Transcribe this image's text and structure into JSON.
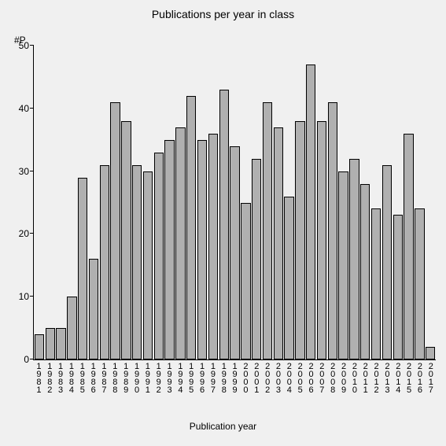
{
  "chart": {
    "type": "bar",
    "title": "Publications per year in class",
    "title_fontsize": 14,
    "yaxis_short_label": "#P",
    "xaxis_label": "Publication year",
    "label_fontsize": 12,
    "background_color": "#f0f0f0",
    "bar_fill_color": "#b0b0b0",
    "bar_border_color": "#000000",
    "axis_color": "#000000",
    "text_color": "#000000",
    "ylim": [
      0,
      50
    ],
    "ytick_step": 10,
    "yticks": [
      0,
      10,
      20,
      30,
      40,
      50
    ],
    "bar_width": 0.9,
    "categories": [
      "1981",
      "1982",
      "1983",
      "1984",
      "1985",
      "1986",
      "1987",
      "1988",
      "1989",
      "1990",
      "1991",
      "1992",
      "1993",
      "1994",
      "1995",
      "1996",
      "1997",
      "1998",
      "1999",
      "2000",
      "2001",
      "2002",
      "2003",
      "2004",
      "2005",
      "2006",
      "2007",
      "2008",
      "2009",
      "2010",
      "2011",
      "2012",
      "2013",
      "2014",
      "2015",
      "2016",
      "2017"
    ],
    "values": [
      4,
      5,
      5,
      10,
      29,
      16,
      31,
      41,
      38,
      31,
      30,
      33,
      35,
      37,
      42,
      35,
      36,
      43,
      34,
      25,
      32,
      41,
      37,
      26,
      38,
      47,
      38,
      41,
      30,
      32,
      28,
      24,
      31,
      23,
      36,
      24,
      2
    ]
  }
}
